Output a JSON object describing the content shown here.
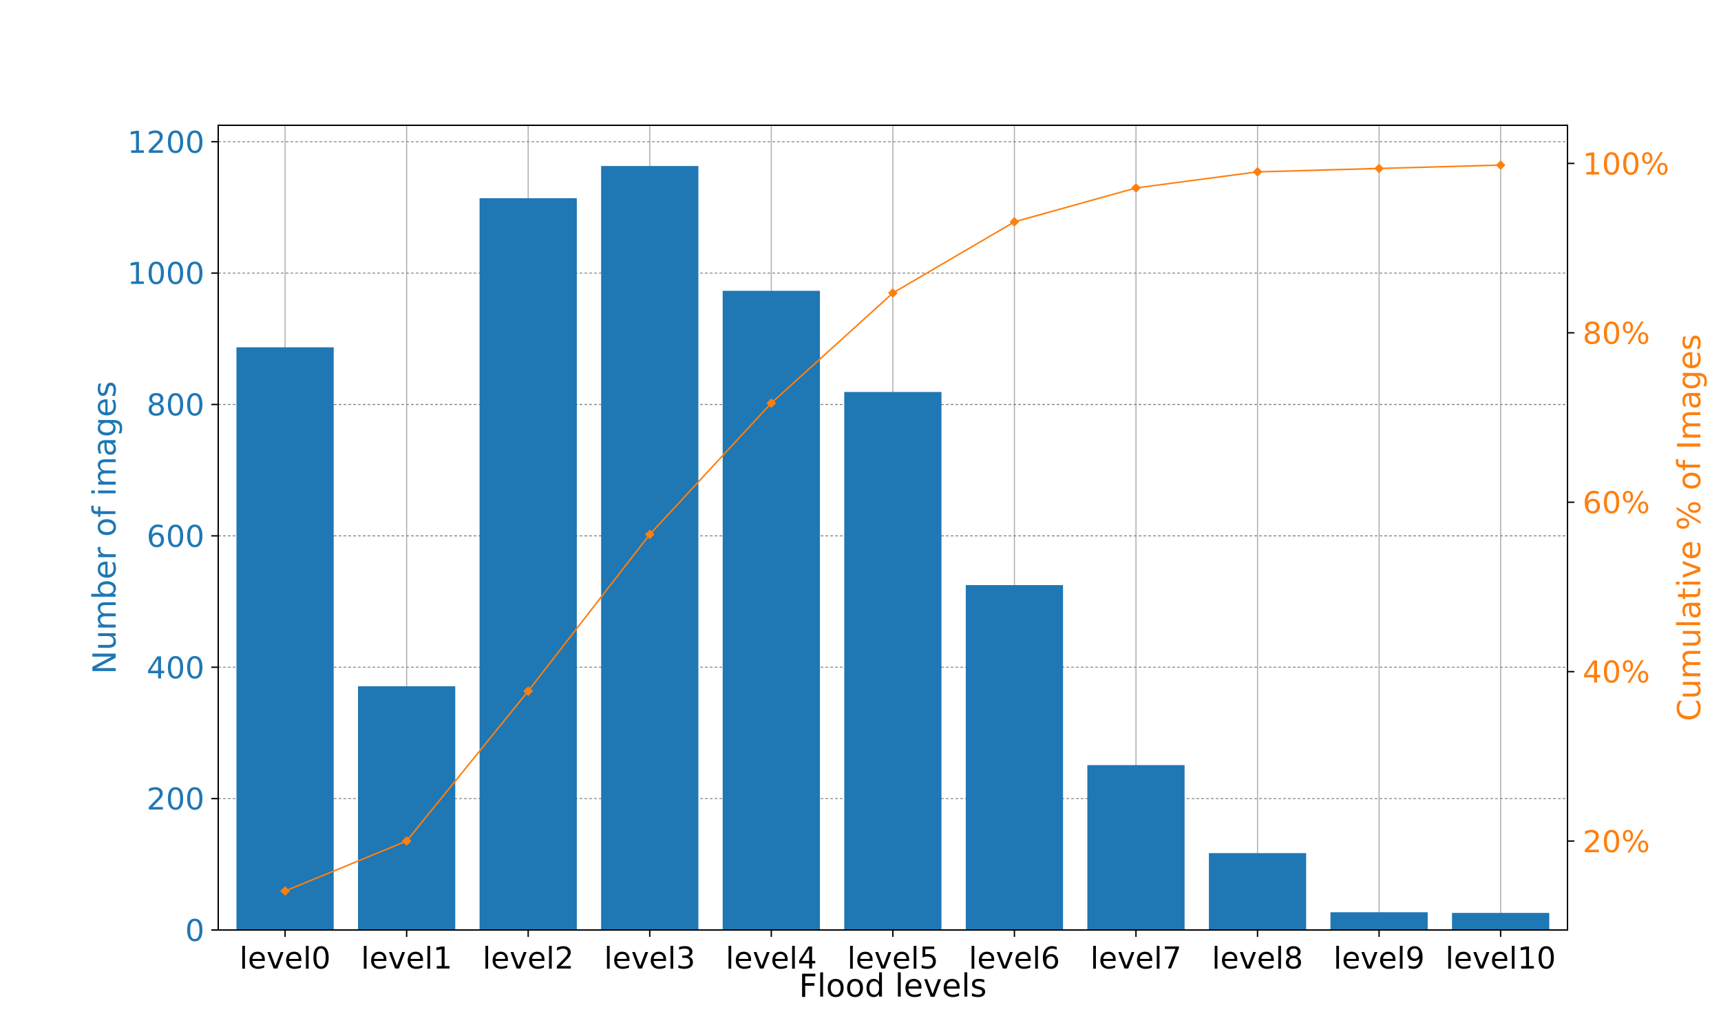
{
  "chart_data": {
    "type": "bar",
    "categories": [
      "level0",
      "level1",
      "level2",
      "level3",
      "level4",
      "level5",
      "level6",
      "level7",
      "level8",
      "level9",
      "level10"
    ],
    "series": [
      {
        "type": "bar",
        "axis": "left",
        "values": [
          887,
          371,
          1114,
          1163,
          973,
          819,
          525,
          251,
          117,
          27,
          26
        ],
        "color": "#1f77b4"
      },
      {
        "type": "line",
        "axis": "right",
        "marker": "diamond",
        "values": [
          14.1,
          20.0,
          37.7,
          56.2,
          71.7,
          84.7,
          93.1,
          97.1,
          99.0,
          99.4,
          99.8
        ],
        "color": "#ff7f0e"
      }
    ],
    "xlabel": "Flood levels",
    "ylabel": "Number of images",
    "ylabel_right": "Cumulative % of Images",
    "ylim": [
      0,
      1225
    ],
    "ylim_right": [
      9.5,
      104.5
    ],
    "yticks": [
      0,
      200,
      400,
      600,
      800,
      1000,
      1200
    ],
    "yticks_right": [
      20,
      40,
      60,
      80,
      100
    ],
    "right_tick_suffix": "%",
    "grid": true,
    "colors": {
      "left_axis": "#1f77b4",
      "right_axis": "#ff7f0e",
      "text": "#000000"
    }
  }
}
